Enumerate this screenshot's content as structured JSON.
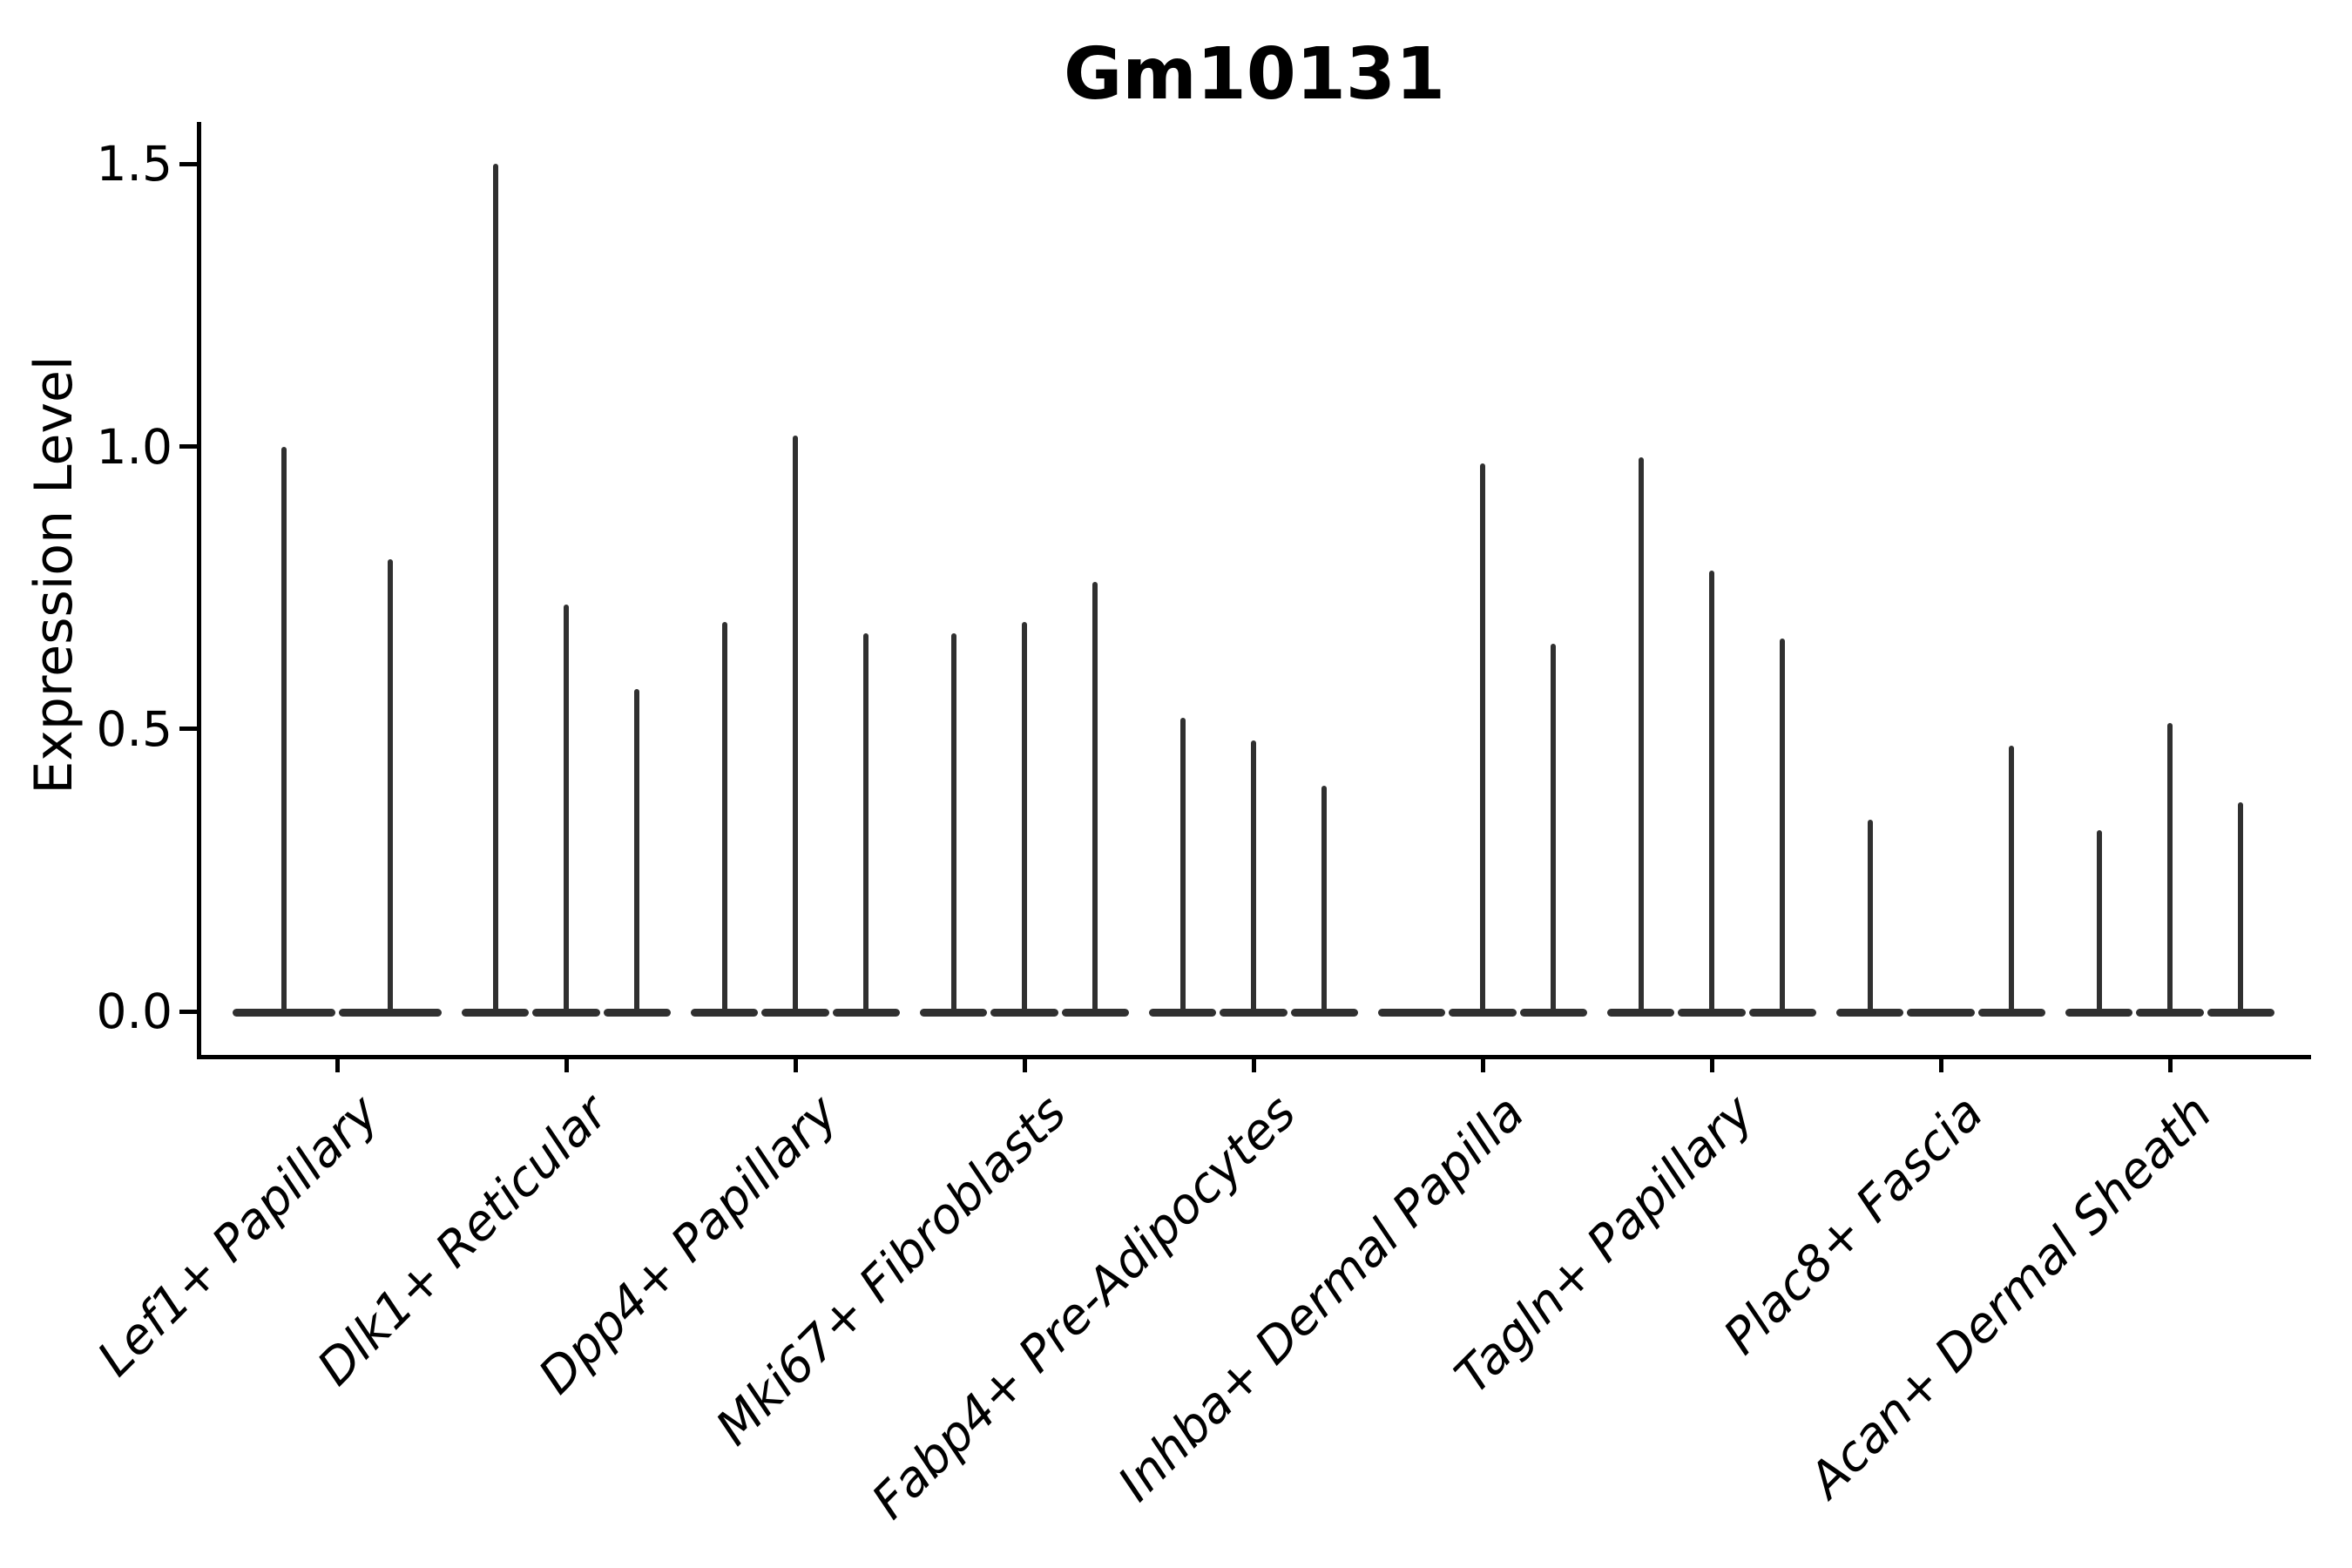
{
  "title": "Gm10131",
  "ylabel": "Expression Level",
  "colors": {
    "background": "#ffffff",
    "violin": "#303030",
    "axis": "#000000",
    "text": "#000000"
  },
  "chart_data": {
    "type": "violin",
    "title": "Gm10131",
    "xlabel": "",
    "ylabel": "Expression Level",
    "ylim": [
      -0.075,
      1.575
    ],
    "yticks": [
      0.0,
      0.5,
      1.0,
      1.5
    ],
    "grid": false,
    "legend": null,
    "xticklabel_style": "italic, rotated 45deg, anchored right",
    "description": "Collapsed violin plot of Gm10131 expression; each cell-type category contains 2-3 needle-thin violins (per-sample), each a flat base at 0 with a vertical spike to its max expression. Spike value 0 means flat violin with no spike.",
    "categories": [
      "Lef1+ Papillary",
      "Dlk1+ Reticular",
      "Dpp4+ Papillary",
      "Mki67+ Fibroblasts",
      "Fabp4+ Pre-Adipocytes",
      "Inhba+ Dermal Papilla",
      "Tagln+ Papillary",
      "Plac8+ Fascia",
      "Acan+ Dermal Sheath"
    ],
    "groups": [
      {
        "label": "Lef1+ Papillary",
        "spikes": [
          1.0,
          0.8
        ]
      },
      {
        "label": "Dlk1+ Reticular",
        "spikes": [
          1.5,
          0.72,
          0.57
        ]
      },
      {
        "label": "Dpp4+ Papillary",
        "spikes": [
          0.69,
          1.02,
          0.67
        ]
      },
      {
        "label": "Mki67+ Fibroblasts",
        "spikes": [
          0.67,
          0.69,
          0.76
        ]
      },
      {
        "label": "Fabp4+ Pre-Adipocytes",
        "spikes": [
          0.52,
          0.48,
          0.4
        ]
      },
      {
        "label": "Inhba+ Dermal Papilla",
        "spikes": [
          0.0,
          0.97,
          0.65
        ]
      },
      {
        "label": "Tagln+ Papillary",
        "spikes": [
          0.98,
          0.78,
          0.66
        ]
      },
      {
        "label": "Plac8+ Fascia",
        "spikes": [
          0.34,
          0.0,
          0.47
        ]
      },
      {
        "label": "Acan+ Dermal Sheath",
        "spikes": [
          0.32,
          0.51,
          0.37
        ]
      }
    ]
  }
}
